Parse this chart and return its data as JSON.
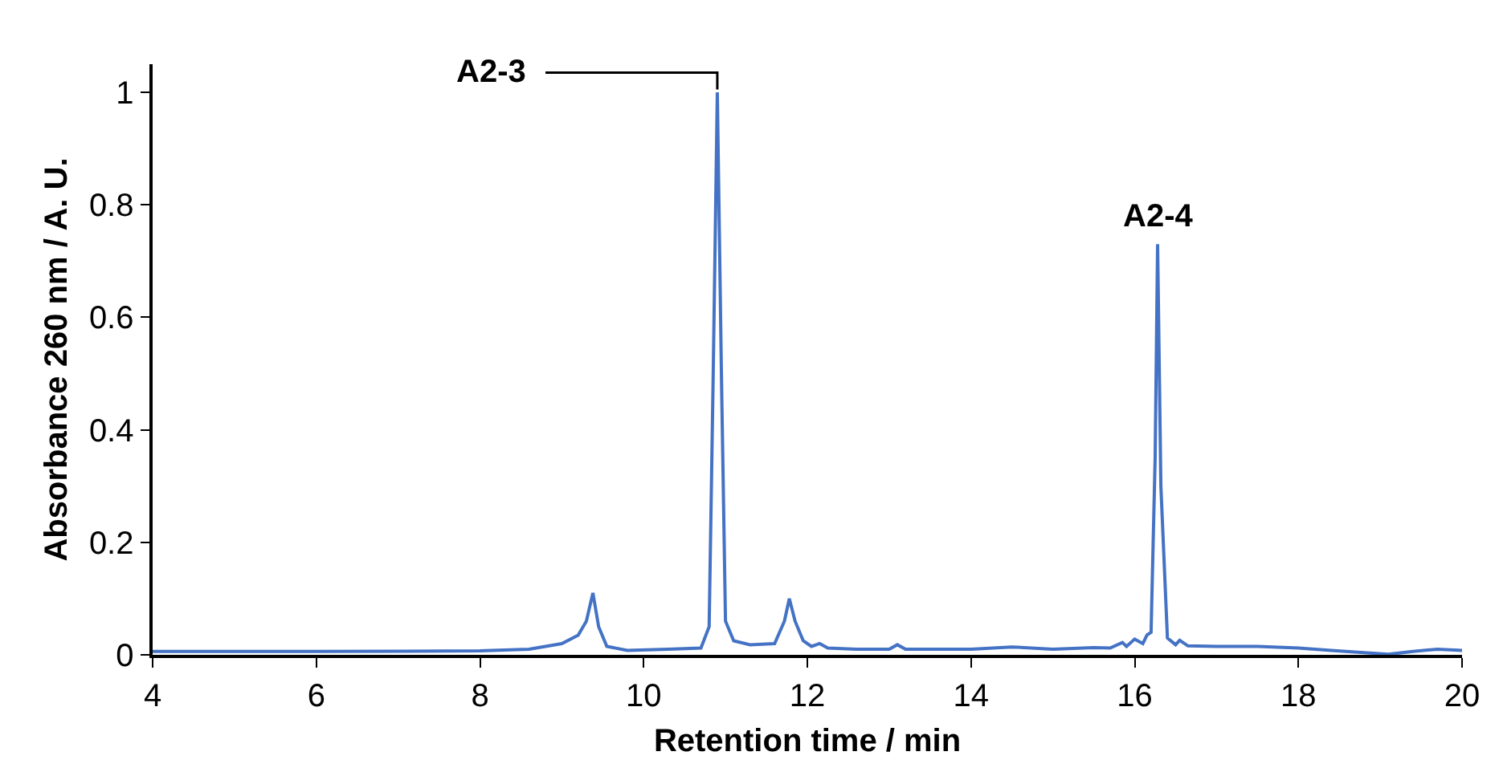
{
  "chart_data": {
    "type": "line",
    "xlabel": "Retention time / min",
    "ylabel": "Absorbance 260 nm / A. U.",
    "x": [
      4,
      6,
      8,
      8.6,
      9.0,
      9.2,
      9.3,
      9.38,
      9.45,
      9.55,
      9.8,
      10.3,
      10.7,
      10.8,
      10.85,
      10.9,
      10.95,
      11.0,
      11.1,
      11.3,
      11.6,
      11.72,
      11.78,
      11.85,
      11.95,
      12.05,
      12.15,
      12.25,
      12.6,
      13.0,
      13.1,
      13.2,
      14.0,
      14.5,
      15.0,
      15.5,
      15.7,
      15.85,
      15.9,
      16.0,
      16.1,
      16.15,
      16.2,
      16.25,
      16.28,
      16.32,
      16.4,
      16.5,
      16.55,
      16.65,
      17.0,
      17.5,
      18.0,
      18.4,
      18.8,
      19.1,
      19.4,
      19.7,
      20
    ],
    "series": [
      {
        "color": "#4472c4",
        "values": [
          0.006,
          0.006,
          0.007,
          0.01,
          0.02,
          0.035,
          0.06,
          0.11,
          0.05,
          0.015,
          0.008,
          0.01,
          0.012,
          0.05,
          0.5,
          1.0,
          0.5,
          0.06,
          0.025,
          0.018,
          0.02,
          0.06,
          0.1,
          0.06,
          0.025,
          0.015,
          0.02,
          0.012,
          0.01,
          0.01,
          0.018,
          0.01,
          0.01,
          0.014,
          0.01,
          0.013,
          0.012,
          0.022,
          0.015,
          0.028,
          0.02,
          0.035,
          0.04,
          0.35,
          0.73,
          0.3,
          0.03,
          0.018,
          0.026,
          0.016,
          0.015,
          0.015,
          0.012,
          0.008,
          0.004,
          0.001,
          0.006,
          0.01,
          0.008
        ]
      }
    ],
    "xlim": [
      4,
      20
    ],
    "xticks": [
      4,
      6,
      8,
      10,
      12,
      14,
      16,
      18,
      20
    ],
    "ylim": [
      0,
      1.05
    ],
    "yticks": [
      0,
      0.2,
      0.4,
      0.6,
      0.8,
      1
    ],
    "marker": "none",
    "line_style": "solid",
    "annotations": [
      {
        "text": "A2-3",
        "x": 10.9,
        "y": 1
      },
      {
        "text": "A2-4",
        "x": 16.28,
        "y": 0.73
      }
    ]
  }
}
